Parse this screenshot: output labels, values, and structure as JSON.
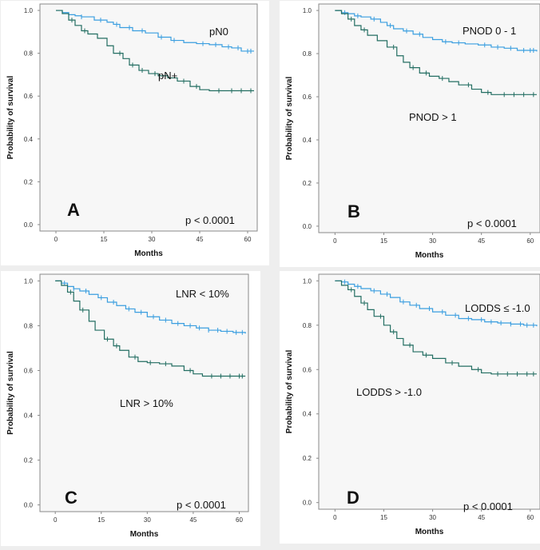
{
  "colors": {
    "favorable": "#3a9ee0",
    "unfavorable": "#236e62",
    "plot_background": "#f7f7f7",
    "frame": "#8a8a8a",
    "panel_background": "#eeeeee"
  },
  "chart_data": [
    {
      "type": "line",
      "panel_letter": "A",
      "ylabel": "Probability of survival",
      "xlabel": "Months",
      "xlim": [
        -5,
        63
      ],
      "ylim": [
        -0.03,
        1.03
      ],
      "x_ticks": [
        0,
        15,
        30,
        45,
        60
      ],
      "y_ticks": [
        "0.0",
        "0.2",
        "0.4",
        "0.6",
        "0.8",
        "1.0"
      ],
      "p_value": "p < 0.0001",
      "series": [
        {
          "name": "pN0",
          "color_key": "favorable",
          "x": [
            0,
            2,
            4,
            6,
            8,
            12,
            16,
            18,
            20,
            24,
            28,
            32,
            36,
            40,
            44,
            48,
            52,
            55,
            58,
            62
          ],
          "y": [
            1.0,
            0.99,
            0.98,
            0.975,
            0.97,
            0.955,
            0.945,
            0.935,
            0.92,
            0.905,
            0.895,
            0.875,
            0.86,
            0.85,
            0.845,
            0.84,
            0.83,
            0.825,
            0.81,
            0.81
          ],
          "censor_x": [
            4,
            8,
            14,
            19,
            23,
            27,
            33,
            37,
            46,
            50,
            54,
            57,
            60,
            61
          ]
        },
        {
          "name": "pN+",
          "color_key": "unfavorable",
          "x": [
            0,
            2,
            4,
            6,
            8,
            10,
            13,
            16,
            18,
            21,
            23,
            26,
            29,
            32,
            35,
            38,
            42,
            45,
            48,
            62
          ],
          "y": [
            1.0,
            0.985,
            0.955,
            0.93,
            0.905,
            0.89,
            0.87,
            0.835,
            0.8,
            0.775,
            0.745,
            0.72,
            0.705,
            0.695,
            0.685,
            0.67,
            0.645,
            0.63,
            0.625,
            0.625
          ],
          "censor_x": [
            5,
            9,
            20,
            24,
            27,
            31,
            40,
            44,
            51,
            55,
            58,
            61
          ]
        }
      ],
      "series_labels": [
        {
          "text": "pN0",
          "series": "pN0"
        },
        {
          "text": "pN+",
          "series": "pN+"
        }
      ]
    },
    {
      "type": "line",
      "panel_letter": "B",
      "ylabel": "Probability of survival",
      "xlabel": "Months",
      "xlim": [
        -5,
        63
      ],
      "ylim": [
        -0.03,
        1.03
      ],
      "x_ticks": [
        0,
        15,
        30,
        45,
        60
      ],
      "y_ticks": [
        "0.0",
        "0.2",
        "0.4",
        "0.6",
        "0.8",
        "1.0"
      ],
      "p_value": "p < 0.0001",
      "series": [
        {
          "name": "PNOD 0 - 1",
          "color_key": "favorable",
          "x": [
            0,
            2,
            4,
            6,
            8,
            11,
            14,
            16,
            18,
            21,
            24,
            27,
            30,
            33,
            36,
            40,
            44,
            48,
            52,
            56,
            62
          ],
          "y": [
            1.0,
            0.99,
            0.985,
            0.975,
            0.97,
            0.96,
            0.945,
            0.93,
            0.915,
            0.905,
            0.89,
            0.875,
            0.865,
            0.855,
            0.85,
            0.845,
            0.84,
            0.83,
            0.825,
            0.815,
            0.81
          ],
          "censor_x": [
            3,
            7,
            12,
            17,
            22,
            26,
            34,
            38,
            46,
            50,
            54,
            58,
            60,
            61
          ]
        },
        {
          "name": "PNOD > 1",
          "color_key": "unfavorable",
          "x": [
            0,
            2,
            4,
            6,
            8,
            10,
            13,
            16,
            19,
            21,
            23,
            26,
            29,
            32,
            35,
            38,
            42,
            45,
            48,
            62
          ],
          "y": [
            1.0,
            0.985,
            0.96,
            0.93,
            0.91,
            0.885,
            0.86,
            0.83,
            0.79,
            0.76,
            0.735,
            0.71,
            0.695,
            0.685,
            0.67,
            0.655,
            0.635,
            0.62,
            0.61,
            0.61
          ],
          "censor_x": [
            5,
            9,
            18,
            24,
            28,
            33,
            41,
            47,
            52,
            55,
            58,
            61
          ]
        }
      ],
      "series_labels": [
        {
          "text": "PNOD 0 - 1",
          "series": "PNOD 0 - 1"
        },
        {
          "text": "PNOD > 1",
          "series": "PNOD > 1"
        }
      ]
    },
    {
      "type": "line",
      "panel_letter": "C",
      "ylabel": "Probability of survival",
      "xlabel": "Months",
      "xlim": [
        -5,
        63
      ],
      "ylim": [
        -0.03,
        1.03
      ],
      "x_ticks": [
        0,
        15,
        30,
        45,
        60
      ],
      "y_ticks": [
        "0.0",
        "0.2",
        "0.4",
        "0.6",
        "0.8",
        "1.0"
      ],
      "p_value": "p < 0.0001",
      "series": [
        {
          "name": "LNR < 10%",
          "color_key": "favorable",
          "x": [
            0,
            2,
            4,
            6,
            8,
            11,
            14,
            17,
            20,
            23,
            26,
            30,
            34,
            38,
            42,
            46,
            50,
            54,
            58,
            62
          ],
          "y": [
            1.0,
            0.99,
            0.975,
            0.965,
            0.955,
            0.94,
            0.925,
            0.905,
            0.89,
            0.875,
            0.86,
            0.84,
            0.825,
            0.81,
            0.8,
            0.79,
            0.78,
            0.775,
            0.77,
            0.765
          ],
          "censor_x": [
            3,
            6,
            10,
            15,
            19,
            24,
            28,
            32,
            36,
            40,
            44,
            47,
            50,
            53,
            56,
            59,
            61
          ]
        },
        {
          "name": "LNR > 10%",
          "color_key": "unfavorable",
          "x": [
            0,
            2,
            4,
            6,
            8,
            11,
            13,
            16,
            19,
            21,
            24,
            27,
            30,
            34,
            38,
            42,
            45,
            48,
            62
          ],
          "y": [
            1.0,
            0.98,
            0.95,
            0.91,
            0.87,
            0.82,
            0.78,
            0.74,
            0.71,
            0.69,
            0.66,
            0.64,
            0.635,
            0.63,
            0.62,
            0.6,
            0.585,
            0.575,
            0.575
          ],
          "censor_x": [
            5,
            9,
            17,
            20,
            26,
            31,
            36,
            44,
            51,
            54,
            57,
            60,
            61
          ]
        }
      ],
      "series_labels": [
        {
          "text": "LNR < 10%",
          "series": "LNR < 10%"
        },
        {
          "text": "LNR > 10%",
          "series": "LNR > 10%"
        }
      ]
    },
    {
      "type": "line",
      "panel_letter": "D",
      "ylabel": "Probability of survival",
      "xlabel": "Months",
      "xlim": [
        -5,
        63
      ],
      "ylim": [
        -0.03,
        1.03
      ],
      "x_ticks": [
        0,
        15,
        30,
        45,
        60
      ],
      "y_ticks": [
        "0.0",
        "0.2",
        "0.4",
        "0.6",
        "0.8",
        "1.0"
      ],
      "p_value": "p < 0.0001",
      "series": [
        {
          "name": "LODDS ≤ -1.0",
          "color_key": "favorable",
          "x": [
            0,
            2,
            4,
            6,
            8,
            11,
            14,
            17,
            20,
            23,
            26,
            30,
            34,
            38,
            42,
            46,
            50,
            54,
            58,
            62
          ],
          "y": [
            1.0,
            0.995,
            0.985,
            0.975,
            0.965,
            0.955,
            0.94,
            0.925,
            0.905,
            0.89,
            0.875,
            0.86,
            0.845,
            0.83,
            0.825,
            0.815,
            0.81,
            0.805,
            0.8,
            0.795
          ],
          "censor_x": [
            3,
            7,
            12,
            16,
            21,
            25,
            29,
            33,
            37,
            41,
            45,
            48,
            51,
            54,
            57,
            59,
            61
          ]
        },
        {
          "name": "LODDS > -1.0",
          "color_key": "unfavorable",
          "x": [
            0,
            2,
            4,
            6,
            8,
            10,
            12,
            15,
            17,
            19,
            21,
            24,
            27,
            30,
            34,
            38,
            42,
            45,
            48,
            62
          ],
          "y": [
            1.0,
            0.98,
            0.96,
            0.93,
            0.9,
            0.87,
            0.84,
            0.8,
            0.77,
            0.74,
            0.71,
            0.68,
            0.665,
            0.65,
            0.63,
            0.615,
            0.6,
            0.585,
            0.58,
            0.58
          ],
          "censor_x": [
            5,
            9,
            14,
            18,
            23,
            28,
            36,
            44,
            50,
            53,
            56,
            59,
            61
          ]
        }
      ],
      "series_labels": [
        {
          "text": "LODDS ≤ -1.0",
          "series": "LODDS ≤ -1.0"
        },
        {
          "text": "LODDS > -1.0",
          "series": "LODDS > -1.0"
        }
      ]
    }
  ]
}
